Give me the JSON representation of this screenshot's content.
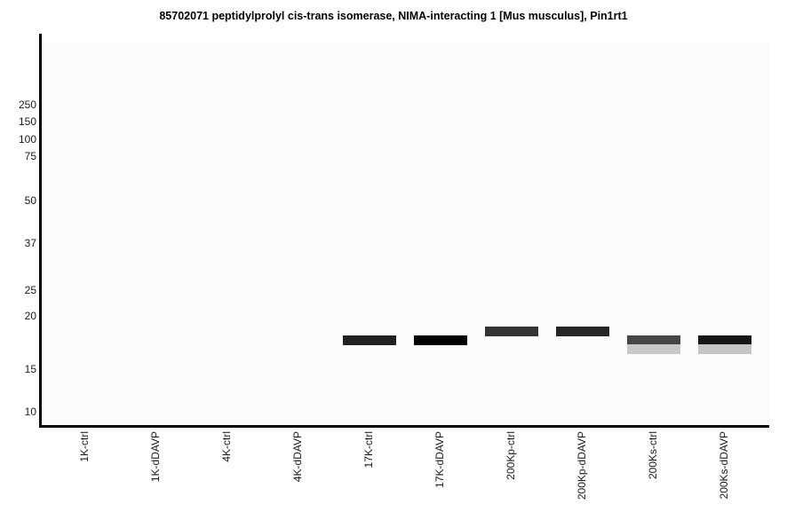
{
  "title": "85702071 peptidylprolyl cis-trans isomerase, NIMA-interacting 1 [Mus musculus], Pin1rt1",
  "chart_data": {
    "type": "western-blot",
    "title": "85702071 peptidylprolyl cis-trans isomerase, NIMA-interacting 1 [Mus musculus], Pin1rt1",
    "y_axis": {
      "ticks": [
        250,
        150,
        100,
        75,
        50,
        37,
        25,
        20,
        15,
        10
      ],
      "scale": "log",
      "range_kda": [
        280,
        9
      ]
    },
    "lanes": [
      "1K-ctrl",
      "1K-dDAVP",
      "4K-ctrl",
      "4K-dDAVP",
      "17K-ctrl",
      "17K-dDAVP",
      "200Kp-ctrl",
      "200Kp-dDAVP",
      "200Ks-ctrl",
      "200Ks-dDAVP"
    ],
    "bands": [
      {
        "lane": "17K-ctrl",
        "mw_kda": 17.5,
        "color": "#222222"
      },
      {
        "lane": "17K-dDAVP",
        "mw_kda": 17.5,
        "color": "#000000"
      },
      {
        "lane": "200Kp-ctrl",
        "mw_kda": 18.4,
        "color": "#333333"
      },
      {
        "lane": "200Kp-dDAVP",
        "mw_kda": 18.4,
        "color": "#262626"
      },
      {
        "lane": "200Ks-ctrl",
        "mw_kda": 17.5,
        "color": "#464646"
      },
      {
        "lane": "200Ks-ctrl",
        "mw_kda": 16.7,
        "color": "#c8c8c8"
      },
      {
        "lane": "200Ks-dDAVP",
        "mw_kda": 17.5,
        "color": "#161616"
      },
      {
        "lane": "200Ks-dDAVP",
        "mw_kda": 16.7,
        "color": "#c4c4c4"
      }
    ],
    "colors": {
      "gel_background": "#fbfbfb",
      "axis": "#000000",
      "tick_text": "#1a1a1a",
      "page_background": "#ffffff"
    },
    "legend": null
  }
}
